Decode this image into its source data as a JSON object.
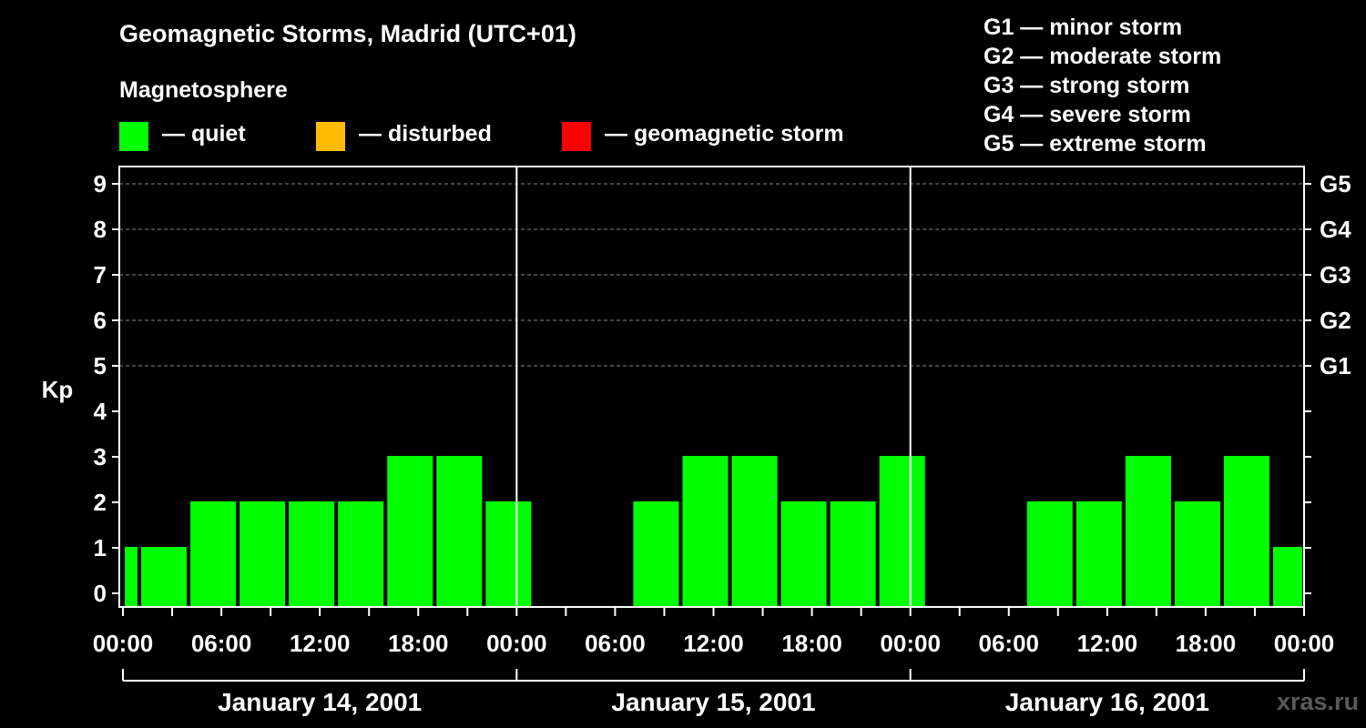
{
  "header": {
    "title": "Geomagnetic Storms, Madrid (UTC+01)",
    "magnetosphere_label": "Magnetosphere"
  },
  "legend": [
    {
      "label": "— quiet",
      "color": "#00ff00"
    },
    {
      "label": "— disturbed",
      "color": "#ffbb00"
    },
    {
      "label": "— geomagnetic storm",
      "color": "#ff0000"
    }
  ],
  "storm_scale": [
    "G1 — minor storm",
    "G2 — moderate storm",
    "G3 — strong storm",
    "G4 — severe storm",
    "G5 — extreme storm"
  ],
  "watermark": "xras.ru",
  "chart_data": {
    "type": "bar",
    "ylabel": "Kp",
    "ylim": [
      0,
      9
    ],
    "yticks": [
      0,
      1,
      2,
      3,
      4,
      5,
      6,
      7,
      8,
      9
    ],
    "right_labels": [
      {
        "kp": 5,
        "label": "G1"
      },
      {
        "kp": 6,
        "label": "G2"
      },
      {
        "kp": 7,
        "label": "G3"
      },
      {
        "kp": 8,
        "label": "G4"
      },
      {
        "kp": 9,
        "label": "G5"
      }
    ],
    "x_tick_labels": [
      "00:00",
      "06:00",
      "12:00",
      "18:00",
      "00:00",
      "06:00",
      "12:00",
      "18:00",
      "00:00",
      "06:00",
      "12:00",
      "18:00",
      "00:00"
    ],
    "days": [
      "January 14, 2001",
      "January 15, 2001",
      "January 16, 2001"
    ],
    "grid": "dashed horizontal at Kp 5-9",
    "bar_color": "#00ff00",
    "bars": [
      {
        "start_hour": 0,
        "end_hour": 1,
        "kp": 1
      },
      {
        "start_hour": 1,
        "end_hour": 4,
        "kp": 1
      },
      {
        "start_hour": 4,
        "end_hour": 7,
        "kp": 2
      },
      {
        "start_hour": 7,
        "end_hour": 10,
        "kp": 2
      },
      {
        "start_hour": 10,
        "end_hour": 13,
        "kp": 2
      },
      {
        "start_hour": 13,
        "end_hour": 16,
        "kp": 2
      },
      {
        "start_hour": 16,
        "end_hour": 19,
        "kp": 3
      },
      {
        "start_hour": 19,
        "end_hour": 22,
        "kp": 3
      },
      {
        "start_hour": 22,
        "end_hour": 25,
        "kp": 2
      },
      {
        "start_hour": 31,
        "end_hour": 34,
        "kp": 2
      },
      {
        "start_hour": 34,
        "end_hour": 37,
        "kp": 3
      },
      {
        "start_hour": 37,
        "end_hour": 40,
        "kp": 3
      },
      {
        "start_hour": 40,
        "end_hour": 43,
        "kp": 2
      },
      {
        "start_hour": 43,
        "end_hour": 46,
        "kp": 2
      },
      {
        "start_hour": 46,
        "end_hour": 49,
        "kp": 3
      },
      {
        "start_hour": 55,
        "end_hour": 58,
        "kp": 2
      },
      {
        "start_hour": 58,
        "end_hour": 61,
        "kp": 2
      },
      {
        "start_hour": 61,
        "end_hour": 64,
        "kp": 3
      },
      {
        "start_hour": 64,
        "end_hour": 67,
        "kp": 2
      },
      {
        "start_hour": 67,
        "end_hour": 70,
        "kp": 3
      },
      {
        "start_hour": 70,
        "end_hour": 72,
        "kp": 1
      }
    ]
  }
}
